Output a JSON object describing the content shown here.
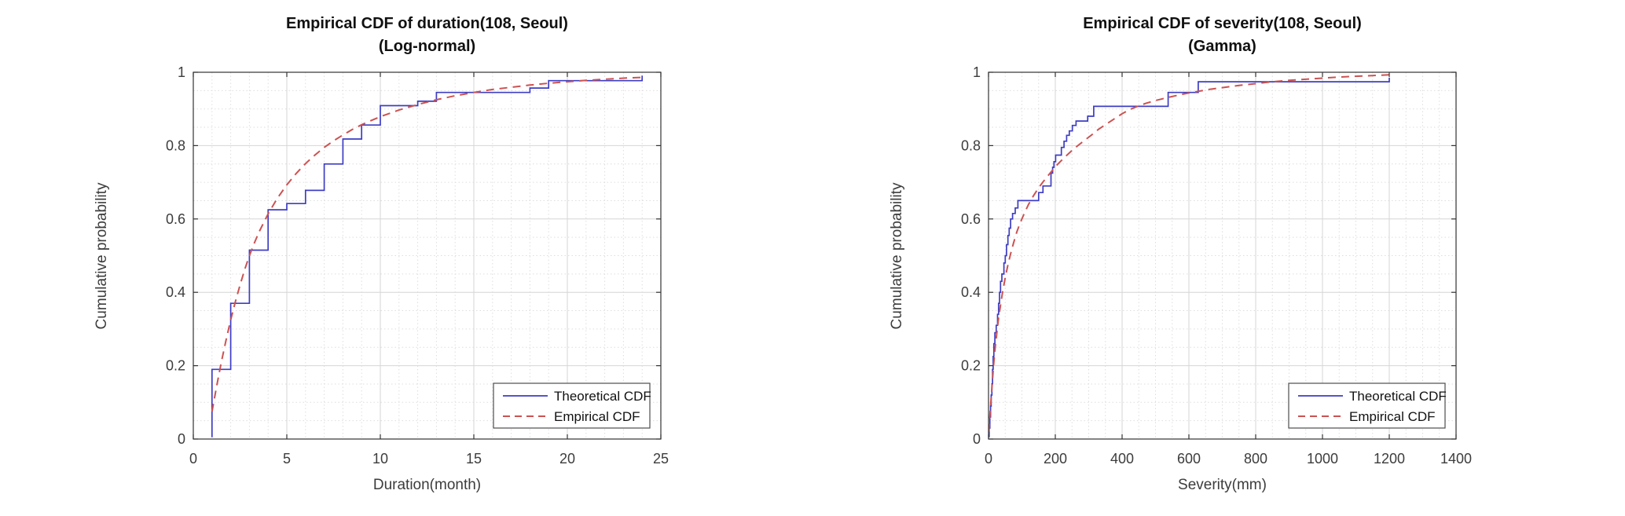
{
  "figure": {
    "background": "#ffffff",
    "axis_color": "#333333",
    "grid_major_color": "#d6d6d6",
    "grid_minor_color": "#dedede",
    "text_color": "#3c3c3c"
  },
  "chart_data": [
    {
      "type": "line",
      "title_line1": "Empirical CDF of duration(108, Seoul)",
      "title_line2": "(Log-normal)",
      "xlabel": "Duration(month)",
      "ylabel": "Cumulative probability",
      "xlim": [
        0,
        25
      ],
      "ylim": [
        0,
        1
      ],
      "xticks": [
        0,
        5,
        10,
        15,
        20,
        25
      ],
      "xtick_labels": [
        "0",
        "5",
        "10",
        "15",
        "20",
        "25"
      ],
      "yticks": [
        0,
        0.2,
        0.4,
        0.6,
        0.8,
        1
      ],
      "ytick_labels": [
        "0",
        "0.2",
        "0.4",
        "0.6",
        "0.8",
        "1"
      ],
      "x_minor_step": 1,
      "y_minor_step": 0.05,
      "grid": "major+minor",
      "legend_position": "bottom-right",
      "series": [
        {
          "name": "Theoretical CDF",
          "style": "solid",
          "shape": "steps",
          "color": "#3d3dc4",
          "points": [
            [
              1,
              0.005
            ],
            [
              1,
              0.19
            ],
            [
              2,
              0.19
            ],
            [
              2,
              0.37
            ],
            [
              3,
              0.37
            ],
            [
              3,
              0.515
            ],
            [
              4,
              0.515
            ],
            [
              4,
              0.625
            ],
            [
              5,
              0.625
            ],
            [
              5,
              0.642
            ],
            [
              6,
              0.642
            ],
            [
              6,
              0.678
            ],
            [
              7,
              0.678
            ],
            [
              7,
              0.75
            ],
            [
              8,
              0.75
            ],
            [
              8,
              0.818
            ],
            [
              9,
              0.818
            ],
            [
              9,
              0.856
            ],
            [
              10,
              0.856
            ],
            [
              10,
              0.909
            ],
            [
              12,
              0.909
            ],
            [
              12,
              0.921
            ],
            [
              13,
              0.921
            ],
            [
              13,
              0.945
            ],
            [
              18,
              0.945
            ],
            [
              18,
              0.957
            ],
            [
              19,
              0.957
            ],
            [
              19,
              0.977
            ],
            [
              24,
              0.977
            ],
            [
              24,
              0.991
            ]
          ]
        },
        {
          "name": "Empirical CDF",
          "style": "dashed",
          "shape": "smooth",
          "color": "#cc5252",
          "points": [
            [
              1,
              0.075
            ],
            [
              1.25,
              0.145
            ],
            [
              1.5,
              0.21
            ],
            [
              1.75,
              0.27
            ],
            [
              2,
              0.325
            ],
            [
              2.25,
              0.375
            ],
            [
              2.5,
              0.42
            ],
            [
              2.75,
              0.462
            ],
            [
              3,
              0.5
            ],
            [
              3.25,
              0.533
            ],
            [
              3.5,
              0.563
            ],
            [
              4,
              0.614
            ],
            [
              4.5,
              0.657
            ],
            [
              5,
              0.693
            ],
            [
              5.5,
              0.724
            ],
            [
              6,
              0.751
            ],
            [
              6.5,
              0.774
            ],
            [
              7,
              0.795
            ],
            [
              7.5,
              0.813
            ],
            [
              8,
              0.829
            ],
            [
              8.5,
              0.844
            ],
            [
              9,
              0.857
            ],
            [
              9.5,
              0.868
            ],
            [
              10,
              0.879
            ],
            [
              11,
              0.897
            ],
            [
              12,
              0.912
            ],
            [
              13,
              0.925
            ],
            [
              14,
              0.936
            ],
            [
              15,
              0.945
            ],
            [
              16,
              0.953
            ],
            [
              17,
              0.959
            ],
            [
              18,
              0.965
            ],
            [
              19,
              0.97
            ],
            [
              20,
              0.974
            ],
            [
              21,
              0.978
            ],
            [
              22,
              0.981
            ],
            [
              23,
              0.984
            ],
            [
              24,
              0.986
            ]
          ]
        }
      ]
    },
    {
      "type": "line",
      "title_line1": "Empirical CDF of severity(108, Seoul)",
      "title_line2": "(Gamma)",
      "xlabel": "Severity(mm)",
      "ylabel": "Cumulative probability",
      "xlim": [
        0,
        1400
      ],
      "ylim": [
        0,
        1
      ],
      "xticks": [
        0,
        200,
        400,
        600,
        800,
        1000,
        1200,
        1400
      ],
      "xtick_labels": [
        "0",
        "200",
        "400",
        "600",
        "800",
        "1000",
        "1200",
        "1400"
      ],
      "yticks": [
        0,
        0.2,
        0.4,
        0.6,
        0.8,
        1
      ],
      "ytick_labels": [
        "0",
        "0.2",
        "0.4",
        "0.6",
        "0.8",
        "1"
      ],
      "x_minor_step": 50,
      "y_minor_step": 0.05,
      "grid": "major+minor",
      "legend_position": "bottom-right",
      "series": [
        {
          "name": "Theoretical CDF",
          "style": "solid",
          "shape": "steps",
          "color": "#3d3dc4",
          "points": [
            [
              2,
              0.005
            ],
            [
              2,
              0.03
            ],
            [
              4,
              0.03
            ],
            [
              4,
              0.06
            ],
            [
              6,
              0.06
            ],
            [
              6,
              0.09
            ],
            [
              8,
              0.09
            ],
            [
              8,
              0.12
            ],
            [
              10,
              0.12
            ],
            [
              10,
              0.15
            ],
            [
              12,
              0.15
            ],
            [
              12,
              0.19
            ],
            [
              14,
              0.19
            ],
            [
              14,
              0.225
            ],
            [
              16,
              0.225
            ],
            [
              16,
              0.26
            ],
            [
              19,
              0.26
            ],
            [
              19,
              0.29
            ],
            [
              23,
              0.29
            ],
            [
              23,
              0.31
            ],
            [
              27,
              0.31
            ],
            [
              27,
              0.34
            ],
            [
              30,
              0.34
            ],
            [
              30,
              0.37
            ],
            [
              33,
              0.37
            ],
            [
              33,
              0.4
            ],
            [
              36,
              0.4
            ],
            [
              36,
              0.43
            ],
            [
              40,
              0.43
            ],
            [
              40,
              0.45
            ],
            [
              46,
              0.45
            ],
            [
              46,
              0.48
            ],
            [
              50,
              0.48
            ],
            [
              50,
              0.5
            ],
            [
              54,
              0.5
            ],
            [
              54,
              0.53
            ],
            [
              58,
              0.53
            ],
            [
              58,
              0.555
            ],
            [
              62,
              0.555
            ],
            [
              62,
              0.575
            ],
            [
              66,
              0.575
            ],
            [
              66,
              0.6
            ],
            [
              72,
              0.6
            ],
            [
              72,
              0.615
            ],
            [
              80,
              0.615
            ],
            [
              80,
              0.63
            ],
            [
              88,
              0.63
            ],
            [
              88,
              0.65
            ],
            [
              150,
              0.65
            ],
            [
              150,
              0.672
            ],
            [
              163,
              0.672
            ],
            [
              163,
              0.69
            ],
            [
              187,
              0.69
            ],
            [
              187,
              0.725
            ],
            [
              192,
              0.725
            ],
            [
              192,
              0.741
            ],
            [
              196,
              0.741
            ],
            [
              196,
              0.756
            ],
            [
              201,
              0.756
            ],
            [
              201,
              0.774
            ],
            [
              218,
              0.774
            ],
            [
              218,
              0.795
            ],
            [
              226,
              0.795
            ],
            [
              226,
              0.812
            ],
            [
              234,
              0.812
            ],
            [
              234,
              0.828
            ],
            [
              242,
              0.828
            ],
            [
              242,
              0.84
            ],
            [
              251,
              0.84
            ],
            [
              251,
              0.855
            ],
            [
              262,
              0.855
            ],
            [
              262,
              0.867
            ],
            [
              297,
              0.867
            ],
            [
              297,
              0.88
            ],
            [
              315,
              0.88
            ],
            [
              315,
              0.907
            ],
            [
              538,
              0.907
            ],
            [
              538,
              0.945
            ],
            [
              628,
              0.945
            ],
            [
              628,
              0.974
            ],
            [
              1200,
              0.974
            ],
            [
              1200,
              0.985
            ]
          ]
        },
        {
          "name": "Empirical CDF",
          "style": "dashed",
          "shape": "smooth",
          "color": "#cc5252",
          "points": [
            [
              1,
              0.02
            ],
            [
              3,
              0.05
            ],
            [
              6,
              0.09
            ],
            [
              10,
              0.14
            ],
            [
              15,
              0.2
            ],
            [
              20,
              0.25
            ],
            [
              25,
              0.29
            ],
            [
              30,
              0.33
            ],
            [
              36,
              0.365
            ],
            [
              42,
              0.4
            ],
            [
              50,
              0.44
            ],
            [
              58,
              0.475
            ],
            [
              66,
              0.505
            ],
            [
              75,
              0.535
            ],
            [
              85,
              0.565
            ],
            [
              95,
              0.59
            ],
            [
              108,
              0.617
            ],
            [
              120,
              0.64
            ],
            [
              135,
              0.664
            ],
            [
              150,
              0.685
            ],
            [
              165,
              0.703
            ],
            [
              180,
              0.72
            ],
            [
              195,
              0.737
            ],
            [
              210,
              0.752
            ],
            [
              230,
              0.77
            ],
            [
              250,
              0.787
            ],
            [
              270,
              0.802
            ],
            [
              290,
              0.816
            ],
            [
              310,
              0.83
            ],
            [
              330,
              0.845
            ],
            [
              355,
              0.86
            ],
            [
              380,
              0.875
            ],
            [
              400,
              0.887
            ],
            [
              420,
              0.897
            ],
            [
              440,
              0.905
            ],
            [
              470,
              0.915
            ],
            [
              500,
              0.923
            ],
            [
              540,
              0.932
            ],
            [
              580,
              0.94
            ],
            [
              620,
              0.947
            ],
            [
              660,
              0.953
            ],
            [
              700,
              0.958
            ],
            [
              750,
              0.964
            ],
            [
              800,
              0.969
            ],
            [
              850,
              0.974
            ],
            [
              900,
              0.978
            ],
            [
              950,
              0.981
            ],
            [
              1000,
              0.984
            ],
            [
              1050,
              0.987
            ],
            [
              1100,
              0.989
            ],
            [
              1150,
              0.991
            ],
            [
              1200,
              0.993
            ]
          ]
        }
      ]
    }
  ]
}
